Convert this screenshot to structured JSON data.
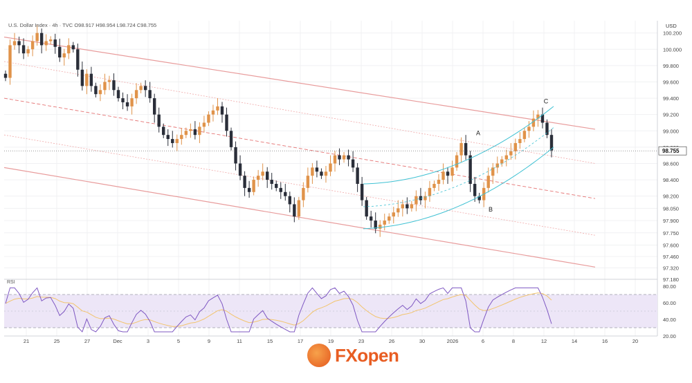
{
  "header": {
    "symbol": "U.S. Dollar Index · 4h · TVC",
    "open": "O98.917",
    "high": "H98.954",
    "low": "L98.724",
    "close": "C98.755"
  },
  "currency_label": "USD",
  "rsi_label": "RSI",
  "logo": {
    "fx": "FX",
    "open": "open"
  },
  "chart_data": {
    "type": "candlestick",
    "title": "U.S. Dollar Index · 4h · TVC",
    "ylabel": "USD",
    "ylim": [
      97.18,
      100.35
    ],
    "y_ticks": [
      100.2,
      100.0,
      99.8,
      99.6,
      99.4,
      99.2,
      99.0,
      98.8,
      98.6,
      98.4,
      98.2,
      98.05,
      97.9,
      97.75,
      97.6,
      97.46,
      97.32,
      97.18
    ],
    "x_tick_labels": [
      "21",
      "25",
      "27",
      "Dec",
      "3",
      "5",
      "9",
      "11",
      "15",
      "17",
      "19",
      "23",
      "26",
      "30",
      "2026",
      "6",
      "8",
      "12",
      "14",
      "16",
      "20"
    ],
    "last_price": 98.755,
    "last_price_label": "98.755",
    "annotations": [
      {
        "label": "A",
        "price": 98.88
      },
      {
        "label": "B",
        "price": 98.13
      },
      {
        "label": "C",
        "price": 99.27
      }
    ],
    "candles_close_path": [
      99.65,
      100.05,
      100.1,
      100.05,
      99.95,
      100.0,
      100.1,
      100.2,
      100.05,
      100.1,
      100.12,
      100.03,
      99.9,
      99.95,
      100.05,
      100.0,
      99.75,
      99.55,
      99.7,
      99.55,
      99.45,
      99.5,
      99.6,
      99.62,
      99.5,
      99.4,
      99.35,
      99.3,
      99.4,
      99.5,
      99.55,
      99.5,
      99.4,
      99.2,
      99.05,
      98.95,
      98.9,
      98.85,
      98.9,
      98.95,
      99.0,
      99.02,
      98.95,
      99.05,
      99.1,
      99.2,
      99.25,
      99.3,
      99.2,
      99.0,
      98.8,
      98.6,
      98.45,
      98.3,
      98.25,
      98.4,
      98.45,
      98.5,
      98.4,
      98.35,
      98.3,
      98.25,
      98.2,
      98.1,
      97.95,
      98.15,
      98.3,
      98.45,
      98.55,
      98.5,
      98.45,
      98.5,
      98.6,
      98.7,
      98.65,
      98.7,
      98.65,
      98.55,
      98.35,
      98.15,
      97.95,
      97.9,
      97.8,
      97.85,
      97.9,
      97.95,
      98.0,
      98.05,
      98.1,
      98.05,
      98.1,
      98.2,
      98.15,
      98.2,
      98.3,
      98.35,
      98.4,
      98.5,
      98.45,
      98.55,
      98.7,
      98.85,
      98.7,
      98.35,
      98.2,
      98.15,
      98.3,
      98.45,
      98.55,
      98.6,
      98.65,
      98.7,
      98.75,
      98.85,
      98.9,
      99.0,
      99.05,
      99.15,
      99.2,
      99.1,
      98.95,
      98.76
    ],
    "rsi": {
      "ylim": [
        20,
        85
      ],
      "y_ticks": [
        80.0,
        60.0,
        40.0,
        20.0
      ],
      "bands": [
        70,
        30
      ],
      "midline": 50
    }
  }
}
